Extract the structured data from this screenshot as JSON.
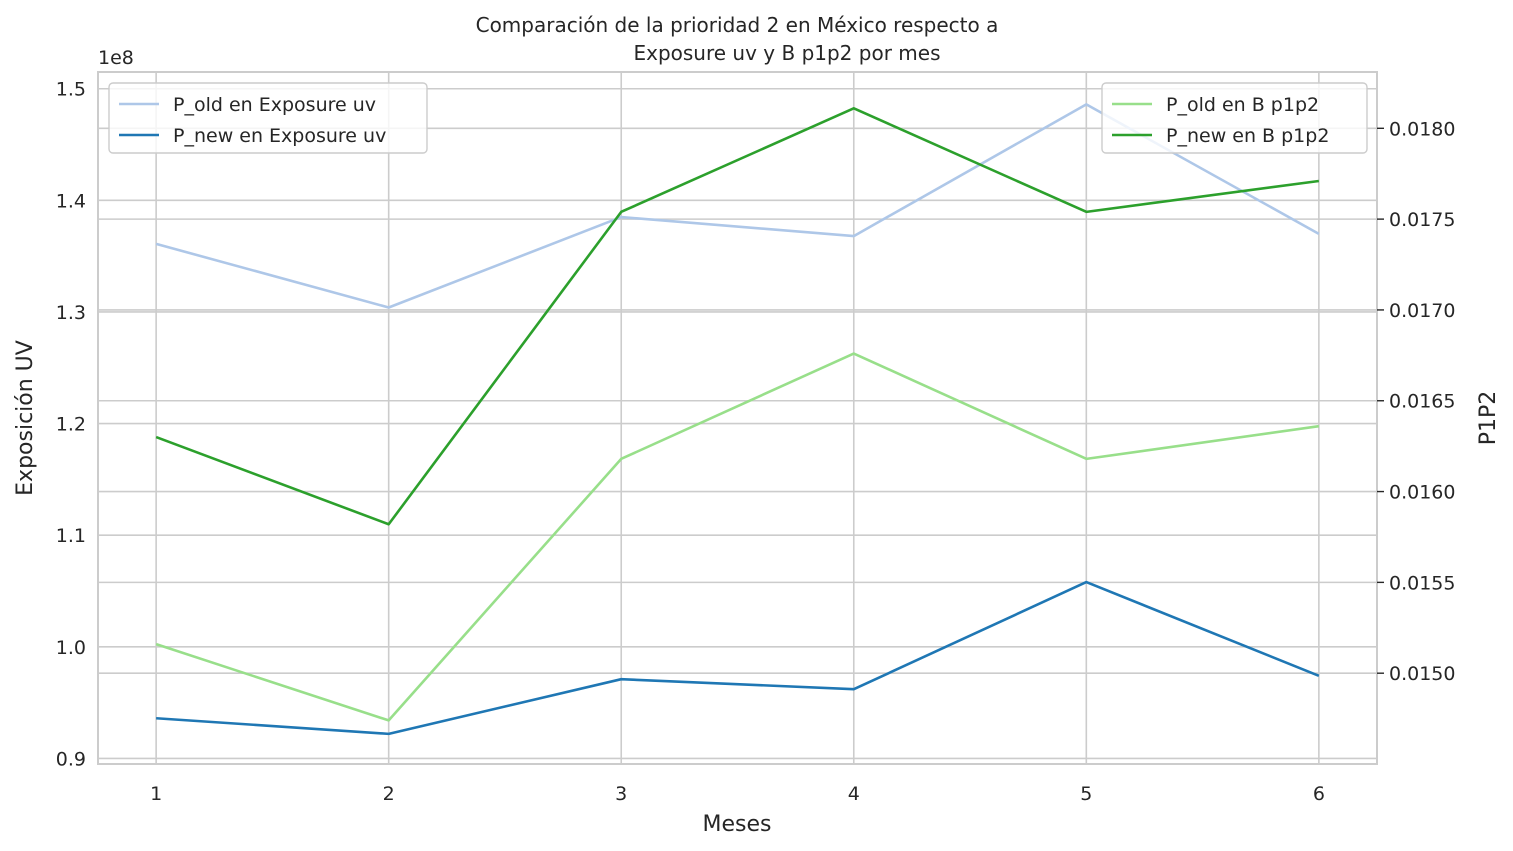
{
  "chart_data": {
    "type": "line",
    "title_line1": "Comparación de la prioridad 2 en México respecto a",
    "title_line2": "Exposure uv y B p1p2 por mes",
    "xlabel": "Meses",
    "ylabel_left": "Exposición UV",
    "ylabel_right": "P1P2",
    "left_offset_text": "1e8",
    "x": [
      1,
      2,
      3,
      4,
      5,
      6
    ],
    "xlim": [
      0.75,
      6.25
    ],
    "left_axis": {
      "ylim": [
        0.895,
        1.515
      ],
      "ticks": [
        0.9,
        1.0,
        1.1,
        1.2,
        1.3,
        1.4,
        1.5
      ],
      "tick_labels": [
        "0.9",
        "1.0",
        "1.1",
        "1.2",
        "1.3",
        "1.4",
        "1.5"
      ],
      "series": [
        {
          "name": "P_old en Exposure uv",
          "color": "#aec7e8",
          "values": [
            1.361,
            1.304,
            1.385,
            1.368,
            1.486,
            1.37
          ]
        },
        {
          "name": "P_new en Exposure uv",
          "color": "#1f77b4",
          "values": [
            0.936,
            0.922,
            0.971,
            0.962,
            1.058,
            0.974
          ]
        }
      ]
    },
    "right_axis": {
      "ylim": [
        0.0145,
        0.01831
      ],
      "ticks": [
        0.015,
        0.0155,
        0.016,
        0.0165,
        0.017,
        0.0175,
        0.018
      ],
      "tick_labels": [
        "0.0150",
        "0.0155",
        "0.0160",
        "0.0165",
        "0.0170",
        "0.0175",
        "0.0180"
      ],
      "series": [
        {
          "name": "P_old en B p1p2",
          "color": "#98df8a",
          "values": [
            0.01516,
            0.01474,
            0.01618,
            0.01676,
            0.01618,
            0.01636
          ]
        },
        {
          "name": "P_new en B p1p2",
          "color": "#2ca02c",
          "values": [
            0.0163,
            0.01582,
            0.01754,
            0.01811,
            0.01754,
            0.01771
          ]
        }
      ]
    },
    "legend_left_position": "upper-left",
    "legend_right_position": "upper-right",
    "grid": true
  }
}
